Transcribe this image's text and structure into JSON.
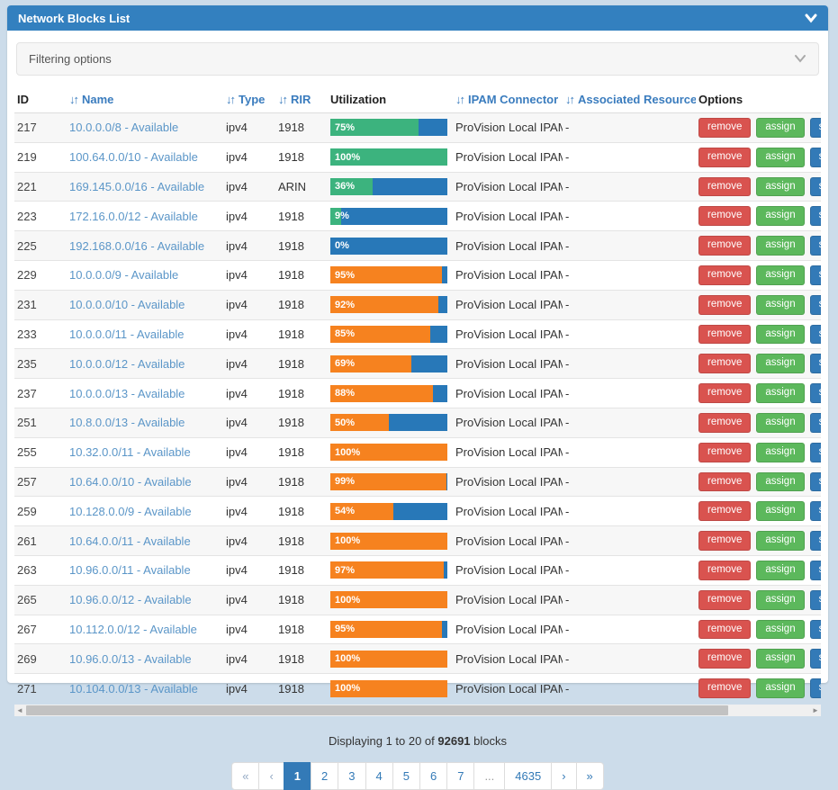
{
  "panel": {
    "title": "Network Blocks List",
    "collapse_icon": "chevron-down-icon"
  },
  "filter": {
    "label": "Filtering options",
    "expand_icon": "chevron-down-icon"
  },
  "table": {
    "columns": [
      {
        "label": "ID",
        "sortable": false
      },
      {
        "label": "Name",
        "sortable": true
      },
      {
        "label": "Type",
        "sortable": true
      },
      {
        "label": "RIR",
        "sortable": true
      },
      {
        "label": "Utilization",
        "sortable": false
      },
      {
        "label": "IPAM Connector",
        "sortable": true
      },
      {
        "label": "Associated Resources",
        "sortable": true
      },
      {
        "label": "Options",
        "sortable": false
      }
    ],
    "row_buttons": [
      "remove",
      "assign",
      "sync"
    ],
    "has_clipped_fourth_button": true,
    "rows": [
      {
        "id": "217",
        "name": "10.0.0.0/8 - Available",
        "type": "ipv4",
        "rir": "1918",
        "utilization": 75,
        "utilization_label": "75%",
        "bar_color": "green",
        "ipam": "ProVision Local IPAM",
        "resources": "-"
      },
      {
        "id": "219",
        "name": "100.64.0.0/10 - Available",
        "type": "ipv4",
        "rir": "1918",
        "utilization": 100,
        "utilization_label": "100%",
        "bar_color": "green",
        "ipam": "ProVision Local IPAM",
        "resources": "-"
      },
      {
        "id": "221",
        "name": "169.145.0.0/16 - Available",
        "type": "ipv4",
        "rir": "ARIN",
        "utilization": 36,
        "utilization_label": "36%",
        "bar_color": "green",
        "ipam": "ProVision Local IPAM",
        "resources": "-"
      },
      {
        "id": "223",
        "name": "172.16.0.0/12 - Available",
        "type": "ipv4",
        "rir": "1918",
        "utilization": 9,
        "utilization_label": "9%",
        "bar_color": "green",
        "ipam": "ProVision Local IPAM",
        "resources": "-"
      },
      {
        "id": "225",
        "name": "192.168.0.0/16 - Available",
        "type": "ipv4",
        "rir": "1918",
        "utilization": 0,
        "utilization_label": "0%",
        "bar_color": "green",
        "ipam": "ProVision Local IPAM",
        "resources": "-"
      },
      {
        "id": "229",
        "name": "10.0.0.0/9 - Available",
        "type": "ipv4",
        "rir": "1918",
        "utilization": 95,
        "utilization_label": "95%",
        "bar_color": "orange",
        "ipam": "ProVision Local IPAM",
        "resources": "-"
      },
      {
        "id": "231",
        "name": "10.0.0.0/10 - Available",
        "type": "ipv4",
        "rir": "1918",
        "utilization": 92,
        "utilization_label": "92%",
        "bar_color": "orange",
        "ipam": "ProVision Local IPAM",
        "resources": "-"
      },
      {
        "id": "233",
        "name": "10.0.0.0/11 - Available",
        "type": "ipv4",
        "rir": "1918",
        "utilization": 85,
        "utilization_label": "85%",
        "bar_color": "orange",
        "ipam": "ProVision Local IPAM",
        "resources": "-"
      },
      {
        "id": "235",
        "name": "10.0.0.0/12 - Available",
        "type": "ipv4",
        "rir": "1918",
        "utilization": 69,
        "utilization_label": "69%",
        "bar_color": "orange",
        "ipam": "ProVision Local IPAM",
        "resources": "-"
      },
      {
        "id": "237",
        "name": "10.0.0.0/13 - Available",
        "type": "ipv4",
        "rir": "1918",
        "utilization": 88,
        "utilization_label": "88%",
        "bar_color": "orange",
        "ipam": "ProVision Local IPAM",
        "resources": "-"
      },
      {
        "id": "251",
        "name": "10.8.0.0/13 - Available",
        "type": "ipv4",
        "rir": "1918",
        "utilization": 50,
        "utilization_label": "50%",
        "bar_color": "orange",
        "ipam": "ProVision Local IPAM",
        "resources": "-"
      },
      {
        "id": "255",
        "name": "10.32.0.0/11 - Available",
        "type": "ipv4",
        "rir": "1918",
        "utilization": 100,
        "utilization_label": "100%",
        "bar_color": "orange",
        "ipam": "ProVision Local IPAM",
        "resources": "-"
      },
      {
        "id": "257",
        "name": "10.64.0.0/10 - Available",
        "type": "ipv4",
        "rir": "1918",
        "utilization": 99,
        "utilization_label": "99%",
        "bar_color": "orange",
        "ipam": "ProVision Local IPAM",
        "resources": "-"
      },
      {
        "id": "259",
        "name": "10.128.0.0/9 - Available",
        "type": "ipv4",
        "rir": "1918",
        "utilization": 54,
        "utilization_label": "54%",
        "bar_color": "orange",
        "ipam": "ProVision Local IPAM",
        "resources": "-"
      },
      {
        "id": "261",
        "name": "10.64.0.0/11 - Available",
        "type": "ipv4",
        "rir": "1918",
        "utilization": 100,
        "utilization_label": "100%",
        "bar_color": "orange",
        "ipam": "ProVision Local IPAM",
        "resources": "-"
      },
      {
        "id": "263",
        "name": "10.96.0.0/11 - Available",
        "type": "ipv4",
        "rir": "1918",
        "utilization": 97,
        "utilization_label": "97%",
        "bar_color": "orange",
        "ipam": "ProVision Local IPAM",
        "resources": "-"
      },
      {
        "id": "265",
        "name": "10.96.0.0/12 - Available",
        "type": "ipv4",
        "rir": "1918",
        "utilization": 100,
        "utilization_label": "100%",
        "bar_color": "orange",
        "ipam": "ProVision Local IPAM",
        "resources": "-"
      },
      {
        "id": "267",
        "name": "10.112.0.0/12 - Available",
        "type": "ipv4",
        "rir": "1918",
        "utilization": 95,
        "utilization_label": "95%",
        "bar_color": "orange",
        "ipam": "ProVision Local IPAM",
        "resources": "-"
      },
      {
        "id": "269",
        "name": "10.96.0.0/13 - Available",
        "type": "ipv4",
        "rir": "1918",
        "utilization": 100,
        "utilization_label": "100%",
        "bar_color": "orange",
        "ipam": "ProVision Local IPAM",
        "resources": "-"
      },
      {
        "id": "271",
        "name": "10.104.0.0/13 - Available",
        "type": "ipv4",
        "rir": "1918",
        "utilization": 100,
        "utilization_label": "100%",
        "bar_color": "orange",
        "ipam": "ProVision Local IPAM",
        "resources": "-"
      }
    ]
  },
  "scrollbar": {
    "left_arrow": "◄",
    "right_arrow": "►"
  },
  "footer": {
    "display_prefix": "Displaying 1 to 20 of ",
    "display_count": "92691",
    "display_suffix": " blocks",
    "pagination": [
      {
        "label": "«",
        "state": "muted"
      },
      {
        "label": "‹",
        "state": "muted"
      },
      {
        "label": "1",
        "state": "active"
      },
      {
        "label": "2",
        "state": "normal"
      },
      {
        "label": "3",
        "state": "normal"
      },
      {
        "label": "4",
        "state": "normal"
      },
      {
        "label": "5",
        "state": "normal"
      },
      {
        "label": "6",
        "state": "normal"
      },
      {
        "label": "7",
        "state": "normal"
      },
      {
        "label": "...",
        "state": "ellipsis"
      },
      {
        "label": "4635",
        "state": "normal"
      },
      {
        "label": "›",
        "state": "normal"
      },
      {
        "label": "»",
        "state": "normal"
      }
    ]
  },
  "colors": {
    "page_bg": "#ccdcea",
    "header_bg": "#3380bf",
    "sort_link": "#3a7cbe",
    "name_link": "#5b96c8",
    "bar_green": "#3cb37e",
    "bar_orange": "#f6821f",
    "bar_remainder": "#2878b8",
    "button_remove": "#d9534f",
    "button_assign": "#5cb85c",
    "button_sync": "#337ab7",
    "button_clipped": "#7ea9d0",
    "pagination_link": "#337ab7",
    "pagination_active": "#337ab7"
  }
}
